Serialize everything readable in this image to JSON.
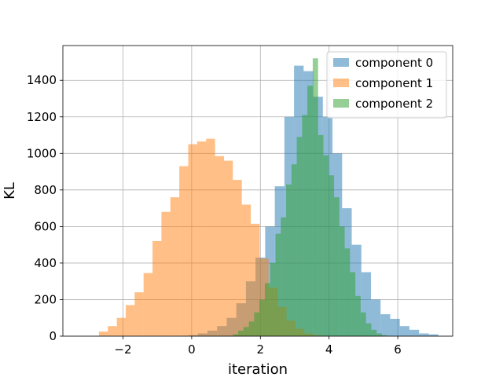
{
  "chart_data": {
    "type": "histogram",
    "xlabel": "iteration",
    "ylabel": "KL",
    "xlim": [
      -3.75,
      7.6
    ],
    "ylim": [
      0,
      1590
    ],
    "xticks": [
      -2,
      0,
      2,
      4,
      6
    ],
    "xtick_labels": [
      "−2",
      "0",
      "2",
      "4",
      "6"
    ],
    "yticks": [
      0,
      200,
      400,
      600,
      800,
      1000,
      1200,
      1400
    ],
    "ytick_labels": [
      "0",
      "200",
      "400",
      "600",
      "800",
      "1000",
      "1200",
      "1400"
    ],
    "grid": true,
    "legend_position": "top-right",
    "opacity": 0.5,
    "series": [
      {
        "name": "component 0",
        "color": "#1f77b4",
        "bin_start": -0.1,
        "bin_width": 0.28,
        "values": [
          5,
          15,
          30,
          55,
          100,
          180,
          300,
          430,
          600,
          820,
          1200,
          1480,
          1450,
          1310,
          1200,
          1000,
          700,
          500,
          350,
          200,
          120,
          95,
          55,
          35,
          15,
          10
        ]
      },
      {
        "name": "component 1",
        "color": "#ff7f0e",
        "bin_start": -2.7,
        "bin_width": 0.26,
        "values": [
          25,
          55,
          100,
          170,
          240,
          345,
          520,
          680,
          760,
          930,
          1050,
          1065,
          1080,
          985,
          960,
          855,
          720,
          615,
          425,
          265,
          160,
          85,
          40,
          15,
          5
        ]
      },
      {
        "name": "component 2",
        "color": "#2ca02c",
        "bin_start": 1.2,
        "bin_width": 0.155,
        "values": [
          10,
          30,
          50,
          80,
          130,
          200,
          290,
          400,
          560,
          650,
          830,
          940,
          1090,
          1210,
          1370,
          1520,
          1100,
          990,
          880,
          760,
          600,
          480,
          350,
          220,
          130,
          70,
          35,
          15,
          5
        ]
      }
    ]
  }
}
